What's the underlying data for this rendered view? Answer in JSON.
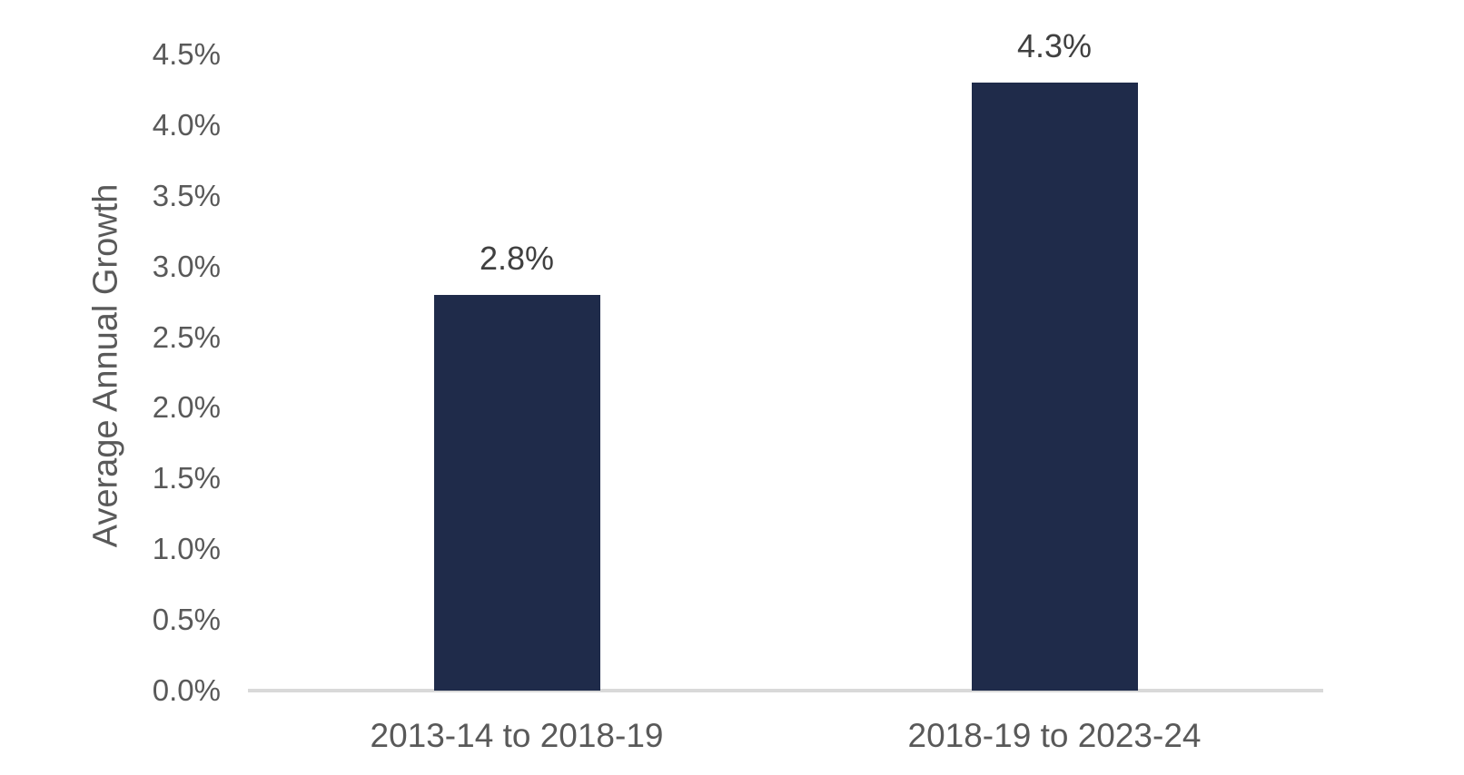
{
  "chart_data": {
    "type": "bar",
    "title": "",
    "xlabel": "",
    "ylabel": "Average Annual Growth",
    "categories": [
      "2013-14 to 2018-19",
      "2018-19 to 2023-24"
    ],
    "series": [
      {
        "name": "Average Annual Growth",
        "values": [
          2.8,
          4.3
        ],
        "data_labels": [
          "2.8%",
          "4.3%"
        ]
      }
    ],
    "yticks": [
      "0.0%",
      "0.5%",
      "1.0%",
      "1.5%",
      "2.0%",
      "2.5%",
      "3.0%",
      "3.5%",
      "4.0%",
      "4.5%"
    ],
    "ylim": [
      0,
      4.5
    ],
    "ytick_step": 0.5,
    "grid": "off",
    "legend": "none",
    "colors": {
      "bar_fill": "#1F2B4A",
      "axis_line": "#D9D9D9",
      "tick_text": "#595959",
      "category_text": "#595959",
      "y_title_text": "#595959",
      "data_label_text": "#404040",
      "background": "#FFFFFF"
    }
  }
}
